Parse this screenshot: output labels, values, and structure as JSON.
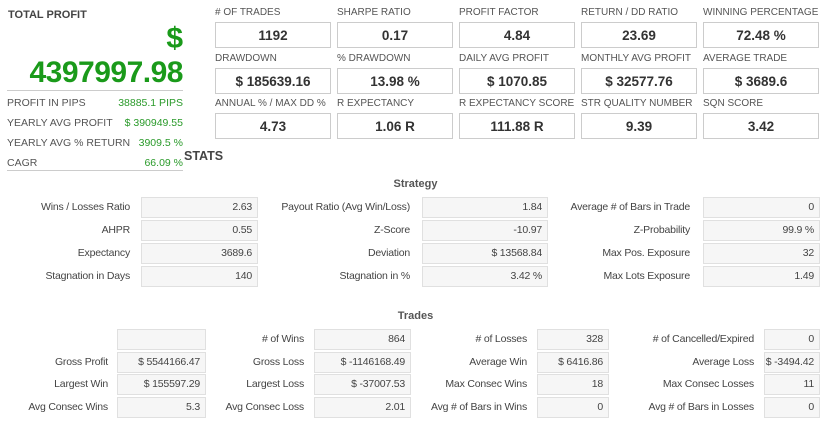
{
  "total_profit": {
    "label": "TOTAL PROFIT",
    "currency": "$",
    "value": "4397997.98"
  },
  "summary": [
    {
      "label": "PROFIT IN PIPS",
      "value": "38885.1 PIPS"
    },
    {
      "label": "YEARLY AVG PROFIT",
      "value": "$ 390949.55"
    },
    {
      "label": "YEARLY AVG % RETURN",
      "value": "3909.5 %"
    },
    {
      "label": "CAGR",
      "value": "66.09 %"
    }
  ],
  "stats_heading": "STATS",
  "metrics": [
    [
      {
        "label": "# OF TRADES",
        "value": "1192"
      },
      {
        "label": "SHARPE RATIO",
        "value": "0.17"
      },
      {
        "label": "PROFIT FACTOR",
        "value": "4.84"
      },
      {
        "label": "RETURN / DD RATIO",
        "value": "23.69"
      },
      {
        "label": "WINNING PERCENTAGE",
        "value": "72.48 %"
      }
    ],
    [
      {
        "label": "DRAWDOWN",
        "value": "$ 185639.16"
      },
      {
        "label": "% DRAWDOWN",
        "value": "13.98 %"
      },
      {
        "label": "DAILY AVG PROFIT",
        "value": "$ 1070.85"
      },
      {
        "label": "MONTHLY AVG PROFIT",
        "value": "$ 32577.76"
      },
      {
        "label": "AVERAGE TRADE",
        "value": "$ 3689.6"
      }
    ],
    [
      {
        "label": "ANNUAL % / MAX DD %",
        "value": "4.73"
      },
      {
        "label": "R EXPECTANCY",
        "value": "1.06 R"
      },
      {
        "label": "R EXPECTANCY SCORE",
        "value": "111.88 R"
      },
      {
        "label": "STR QUALITY NUMBER",
        "value": "9.39"
      },
      {
        "label": "SQN SCORE",
        "value": "3.42"
      }
    ]
  ],
  "strategy": {
    "title": "Strategy",
    "rows": [
      [
        [
          "Wins / Losses Ratio",
          "2.63"
        ],
        [
          "Payout Ratio (Avg Win/Loss)",
          "1.84"
        ],
        [
          "Average # of Bars in Trade",
          "0"
        ]
      ],
      [
        [
          "AHPR",
          "0.55"
        ],
        [
          "Z-Score",
          "-10.97"
        ],
        [
          "Z-Probability",
          "99.9 %"
        ]
      ],
      [
        [
          "Expectancy",
          "3689.6"
        ],
        [
          "Deviation",
          "$ 13568.84"
        ],
        [
          "Max Pos. Exposure",
          "32"
        ]
      ],
      [
        [
          "Stagnation in Days",
          "140"
        ],
        [
          "Stagnation in %",
          "3.42 %"
        ],
        [
          "Max Lots Exposure",
          "1.49"
        ]
      ]
    ]
  },
  "trades": {
    "title": "Trades",
    "rows": [
      [
        [
          "",
          ""
        ],
        [
          "# of Wins",
          "864"
        ],
        [
          "# of Losses",
          "328"
        ],
        [
          "# of Cancelled/Expired",
          "0"
        ]
      ],
      [
        [
          "Gross Profit",
          "$ 5544166.47"
        ],
        [
          "Gross Loss",
          "$ -1146168.49"
        ],
        [
          "Average Win",
          "$ 6416.86"
        ],
        [
          "Average Loss",
          "$ -3494.42"
        ]
      ],
      [
        [
          "Largest Win",
          "$ 155597.29"
        ],
        [
          "Largest Loss",
          "$ -37007.53"
        ],
        [
          "Max Consec Wins",
          "18"
        ],
        [
          "Max Consec Losses",
          "11"
        ]
      ],
      [
        [
          "Avg Consec Wins",
          "5.3"
        ],
        [
          "Avg Consec Loss",
          "2.01"
        ],
        [
          "Avg # of Bars in Wins",
          "0"
        ],
        [
          "Avg # of Bars in Losses",
          "0"
        ]
      ]
    ]
  }
}
